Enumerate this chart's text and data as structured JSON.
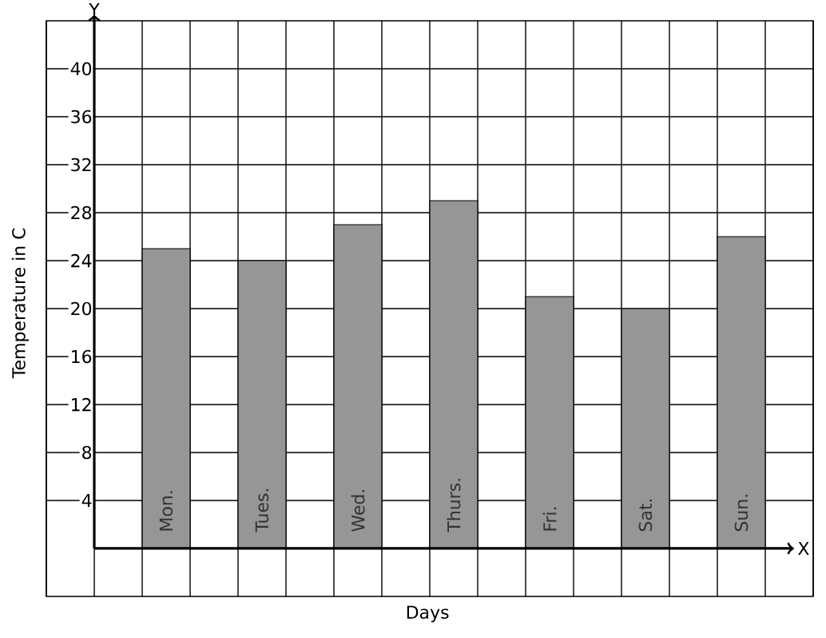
{
  "chart_data": {
    "type": "bar",
    "xlabel": "Days",
    "ylabel": "Temperature in C",
    "annotations": [
      "X",
      "Y"
    ],
    "categories": [
      "Mon.",
      "Tues.",
      "Wed.",
      "Thurs.",
      "Fri.",
      "Sat.",
      "Sun."
    ],
    "values": [
      25,
      24,
      27,
      29,
      21,
      20,
      26
    ],
    "color": "#969696",
    "ylim": [
      -4,
      44
    ],
    "yticks": [
      4,
      8,
      12,
      16,
      20,
      24,
      28,
      32,
      36,
      40
    ],
    "grid": true
  }
}
